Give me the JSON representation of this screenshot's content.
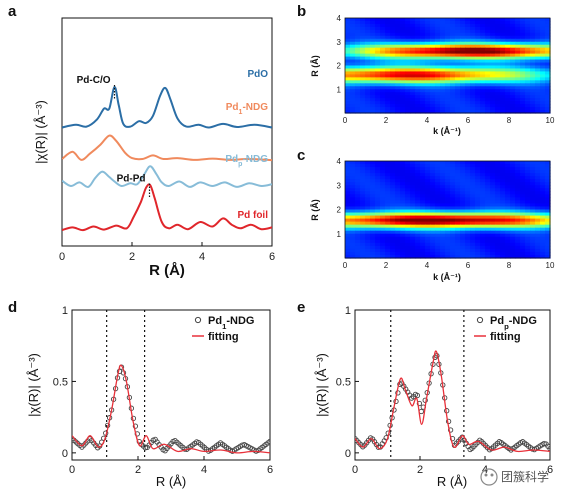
{
  "panels": {
    "a": "a",
    "b": "b",
    "c": "c",
    "d": "d",
    "e": "e"
  },
  "watermark": "团簇科学",
  "colors": {
    "PdO": "#2b6ea6",
    "Pd1NDG": "#f08a5d",
    "PdpNDG": "#87bcd8",
    "Pdfoil": "#e0262b",
    "fitting": "#e8313a",
    "data_markers": "#444444"
  },
  "chart_data": [
    {
      "id": "a",
      "type": "line",
      "xlabel": "R (Å)",
      "ylabel": "|χ(R)| (Å⁻³)",
      "xlim": [
        0,
        6
      ],
      "xticks": [
        0,
        2,
        4,
        6
      ],
      "annotations": [
        {
          "text": "Pd-C/O",
          "x": 1.5
        },
        {
          "text": "Pd-Pd",
          "x": 2.5
        }
      ],
      "series": [
        {
          "name": "PdO",
          "name_sub": "",
          "color": "#2b6ea6",
          "offset": 6.2,
          "points": [
            [
              0,
              0.05
            ],
            [
              0.4,
              0.2
            ],
            [
              0.7,
              0.1
            ],
            [
              1.0,
              0.5
            ],
            [
              1.2,
              1.1
            ],
            [
              1.35,
              1.1
            ],
            [
              1.5,
              2.3
            ],
            [
              1.62,
              1.3
            ],
            [
              1.75,
              0.25
            ],
            [
              1.95,
              0.1
            ],
            [
              2.2,
              0.4
            ],
            [
              2.4,
              0.3
            ],
            [
              2.6,
              0.7
            ],
            [
              2.8,
              1.8
            ],
            [
              2.95,
              2.25
            ],
            [
              3.1,
              1.6
            ],
            [
              3.3,
              0.55
            ],
            [
              3.55,
              0.1
            ],
            [
              3.9,
              0.2
            ],
            [
              4.2,
              0.05
            ],
            [
              4.6,
              0.25
            ],
            [
              5.0,
              0.08
            ],
            [
              5.5,
              0.2
            ],
            [
              6,
              0.05
            ]
          ]
        },
        {
          "name": "Pd",
          "name_sub": "1",
          "name_suffix": "-NDG",
          "color": "#f08a5d",
          "offset": 4.4,
          "points": [
            [
              0,
              0.1
            ],
            [
              0.3,
              0.5
            ],
            [
              0.55,
              0.05
            ],
            [
              0.8,
              0.4
            ],
            [
              1.1,
              0.9
            ],
            [
              1.35,
              1.4
            ],
            [
              1.55,
              1.1
            ],
            [
              1.8,
              0.45
            ],
            [
              2.0,
              0.15
            ],
            [
              2.3,
              0.1
            ],
            [
              2.6,
              0.3
            ],
            [
              2.9,
              0.1
            ],
            [
              3.3,
              0.15
            ],
            [
              3.8,
              0.05
            ],
            [
              4.3,
              0.12
            ],
            [
              4.8,
              0.05
            ],
            [
              5.3,
              0.1
            ],
            [
              6,
              0.04
            ]
          ]
        },
        {
          "name": "Pd",
          "name_sub": "p",
          "name_suffix": "-NDG",
          "color": "#87bcd8",
          "offset": 2.9,
          "points": [
            [
              0,
              0.4
            ],
            [
              0.25,
              0.1
            ],
            [
              0.5,
              0.3
            ],
            [
              0.75,
              0.05
            ],
            [
              0.95,
              0.55
            ],
            [
              1.15,
              0.9
            ],
            [
              1.35,
              0.6
            ],
            [
              1.5,
              0.35
            ],
            [
              1.7,
              0.1
            ],
            [
              1.95,
              0.25
            ],
            [
              2.15,
              0.2
            ],
            [
              2.35,
              0.75
            ],
            [
              2.52,
              1.2
            ],
            [
              2.7,
              0.75
            ],
            [
              2.85,
              0.3
            ],
            [
              3.05,
              0.1
            ],
            [
              3.35,
              0.35
            ],
            [
              3.65,
              0.05
            ],
            [
              3.95,
              0.3
            ],
            [
              4.3,
              0.1
            ],
            [
              4.65,
              0.3
            ],
            [
              5.0,
              0.05
            ],
            [
              5.35,
              0.25
            ],
            [
              5.7,
              0.1
            ],
            [
              6,
              0.2
            ]
          ]
        },
        {
          "name": "Pd foil",
          "name_sub": "",
          "color": "#e0262b",
          "offset": 0.5,
          "points": [
            [
              0,
              0.05
            ],
            [
              0.3,
              0.2
            ],
            [
              0.6,
              0.05
            ],
            [
              0.9,
              0.25
            ],
            [
              1.2,
              0.08
            ],
            [
              1.55,
              0.3
            ],
            [
              1.85,
              0.15
            ],
            [
              2.05,
              0.8
            ],
            [
              2.25,
              1.6
            ],
            [
              2.4,
              2.4
            ],
            [
              2.52,
              2.55
            ],
            [
              2.65,
              1.8
            ],
            [
              2.85,
              0.5
            ],
            [
              3.05,
              0.15
            ],
            [
              3.3,
              0.35
            ],
            [
              3.6,
              0.1
            ],
            [
              3.95,
              0.5
            ],
            [
              4.3,
              0.25
            ],
            [
              4.6,
              0.7
            ],
            [
              4.85,
              0.35
            ],
            [
              5.1,
              0.15
            ],
            [
              5.4,
              0.35
            ],
            [
              5.7,
              0.1
            ],
            [
              6,
              0.2
            ]
          ]
        }
      ]
    },
    {
      "id": "b",
      "type": "heatmap",
      "xlabel": "k (Å⁻¹)",
      "ylabel": "R (Å)",
      "xlim": [
        0,
        10
      ],
      "ylim": [
        0,
        4
      ],
      "xticks": [
        0,
        2,
        4,
        6,
        8,
        10
      ],
      "yticks": [
        1,
        2,
        3,
        4
      ],
      "bands": [
        {
          "r": 2.6,
          "sigma_r": 0.22,
          "k_center": 6.0,
          "k_width": 3.2,
          "intensity": 1.0
        },
        {
          "r": 1.6,
          "sigma_r": 0.24,
          "k_center": 3.0,
          "k_width": 3.5,
          "intensity": 0.85
        }
      ]
    },
    {
      "id": "c",
      "type": "heatmap",
      "xlabel": "k (Å⁻¹)",
      "ylabel": "R (Å)",
      "xlim": [
        0,
        10
      ],
      "ylim": [
        0,
        4
      ],
      "xticks": [
        0,
        2,
        4,
        6,
        8,
        10
      ],
      "yticks": [
        1,
        2,
        3,
        4
      ],
      "bands": [
        {
          "r": 1.55,
          "sigma_r": 0.22,
          "k_center": 4.5,
          "k_width": 4.0,
          "intensity": 1.0
        }
      ]
    },
    {
      "id": "d",
      "type": "line",
      "xlabel": "R (Å)",
      "ylabel": "|χ(R)| (Å⁻³)",
      "xlim": [
        0,
        6
      ],
      "ylim": [
        -0.05,
        1
      ],
      "xticks": [
        0,
        2,
        4,
        6
      ],
      "yticks": [
        0,
        0.5,
        1
      ],
      "vlines": [
        1.05,
        2.2
      ],
      "series": [
        {
          "name": "Pd",
          "name_sub": "1",
          "name_suffix": "-NDG",
          "style": "markers",
          "color": "#444444",
          "points": [
            [
              0,
              0.1
            ],
            [
              0.3,
              0.04
            ],
            [
              0.55,
              0.1
            ],
            [
              0.8,
              0.03
            ],
            [
              1.0,
              0.12
            ],
            [
              1.2,
              0.3
            ],
            [
              1.4,
              0.55
            ],
            [
              1.5,
              0.6
            ],
            [
              1.65,
              0.5
            ],
            [
              1.85,
              0.25
            ],
            [
              2.05,
              0.07
            ],
            [
              2.25,
              0.03
            ],
            [
              2.5,
              0.1
            ],
            [
              2.8,
              0.01
            ],
            [
              3.1,
              0.09
            ],
            [
              3.45,
              0.02
            ],
            [
              3.8,
              0.08
            ],
            [
              4.15,
              0.01
            ],
            [
              4.5,
              0.07
            ],
            [
              4.85,
              0.01
            ],
            [
              5.2,
              0.06
            ],
            [
              5.6,
              0.01
            ],
            [
              6.0,
              0.08
            ]
          ]
        },
        {
          "name": "fitting",
          "name_sub": "",
          "style": "line",
          "color": "#e8313a",
          "points": [
            [
              0,
              0.12
            ],
            [
              0.3,
              0.05
            ],
            [
              0.55,
              0.12
            ],
            [
              0.8,
              0.04
            ],
            [
              1.0,
              0.1
            ],
            [
              1.2,
              0.3
            ],
            [
              1.4,
              0.56
            ],
            [
              1.5,
              0.61
            ],
            [
              1.65,
              0.5
            ],
            [
              1.85,
              0.22
            ],
            [
              2.05,
              0.05
            ],
            [
              2.25,
              0.12
            ],
            [
              2.45,
              0.03
            ],
            [
              2.8,
              0.06
            ],
            [
              3.2,
              0.01
            ],
            [
              3.6,
              0.03
            ],
            [
              4.0,
              0.01
            ],
            [
              4.5,
              0.02
            ],
            [
              5.0,
              0.0
            ],
            [
              5.5,
              0.01
            ],
            [
              6.0,
              0.0
            ]
          ]
        }
      ]
    },
    {
      "id": "e",
      "type": "line",
      "xlabel": "R (Å)",
      "ylabel": "|χ(R)| (Å⁻³)",
      "xlim": [
        0,
        6
      ],
      "ylim": [
        -0.05,
        1
      ],
      "xticks": [
        0,
        2,
        4,
        6
      ],
      "yticks": [
        0,
        0.5,
        1
      ],
      "vlines": [
        1.1,
        3.35
      ],
      "series": [
        {
          "name": "Pd",
          "name_sub": "p",
          "name_suffix": "-NDG",
          "style": "markers",
          "color": "#444444",
          "points": [
            [
              0,
              0.1
            ],
            [
              0.25,
              0.04
            ],
            [
              0.5,
              0.11
            ],
            [
              0.75,
              0.03
            ],
            [
              1.0,
              0.12
            ],
            [
              1.2,
              0.3
            ],
            [
              1.4,
              0.5
            ],
            [
              1.55,
              0.45
            ],
            [
              1.75,
              0.38
            ],
            [
              1.9,
              0.42
            ],
            [
              2.05,
              0.28
            ],
            [
              2.2,
              0.4
            ],
            [
              2.4,
              0.62
            ],
            [
              2.5,
              0.7
            ],
            [
              2.65,
              0.55
            ],
            [
              2.85,
              0.25
            ],
            [
              3.05,
              0.05
            ],
            [
              3.3,
              0.11
            ],
            [
              3.55,
              0.02
            ],
            [
              3.85,
              0.09
            ],
            [
              4.15,
              0.02
            ],
            [
              4.45,
              0.08
            ],
            [
              4.8,
              0.02
            ],
            [
              5.15,
              0.08
            ],
            [
              5.5,
              0.02
            ],
            [
              5.85,
              0.07
            ],
            [
              6.0,
              0.03
            ]
          ]
        },
        {
          "name": "fitting",
          "name_sub": "",
          "style": "line",
          "color": "#e8313a",
          "points": [
            [
              0,
              0.1
            ],
            [
              0.25,
              0.04
            ],
            [
              0.5,
              0.1
            ],
            [
              0.75,
              0.03
            ],
            [
              1.0,
              0.1
            ],
            [
              1.2,
              0.32
            ],
            [
              1.4,
              0.52
            ],
            [
              1.55,
              0.44
            ],
            [
              1.75,
              0.33
            ],
            [
              1.9,
              0.38
            ],
            [
              2.05,
              0.2
            ],
            [
              2.2,
              0.38
            ],
            [
              2.4,
              0.63
            ],
            [
              2.5,
              0.71
            ],
            [
              2.65,
              0.55
            ],
            [
              2.85,
              0.22
            ],
            [
              3.05,
              0.04
            ],
            [
              3.3,
              0.12
            ],
            [
              3.5,
              0.06
            ],
            [
              3.8,
              0.08
            ],
            [
              4.2,
              0.02
            ],
            [
              4.6,
              0.04
            ],
            [
              5.0,
              0.01
            ],
            [
              5.5,
              0.02
            ],
            [
              6.0,
              0.01
            ]
          ]
        }
      ]
    }
  ]
}
